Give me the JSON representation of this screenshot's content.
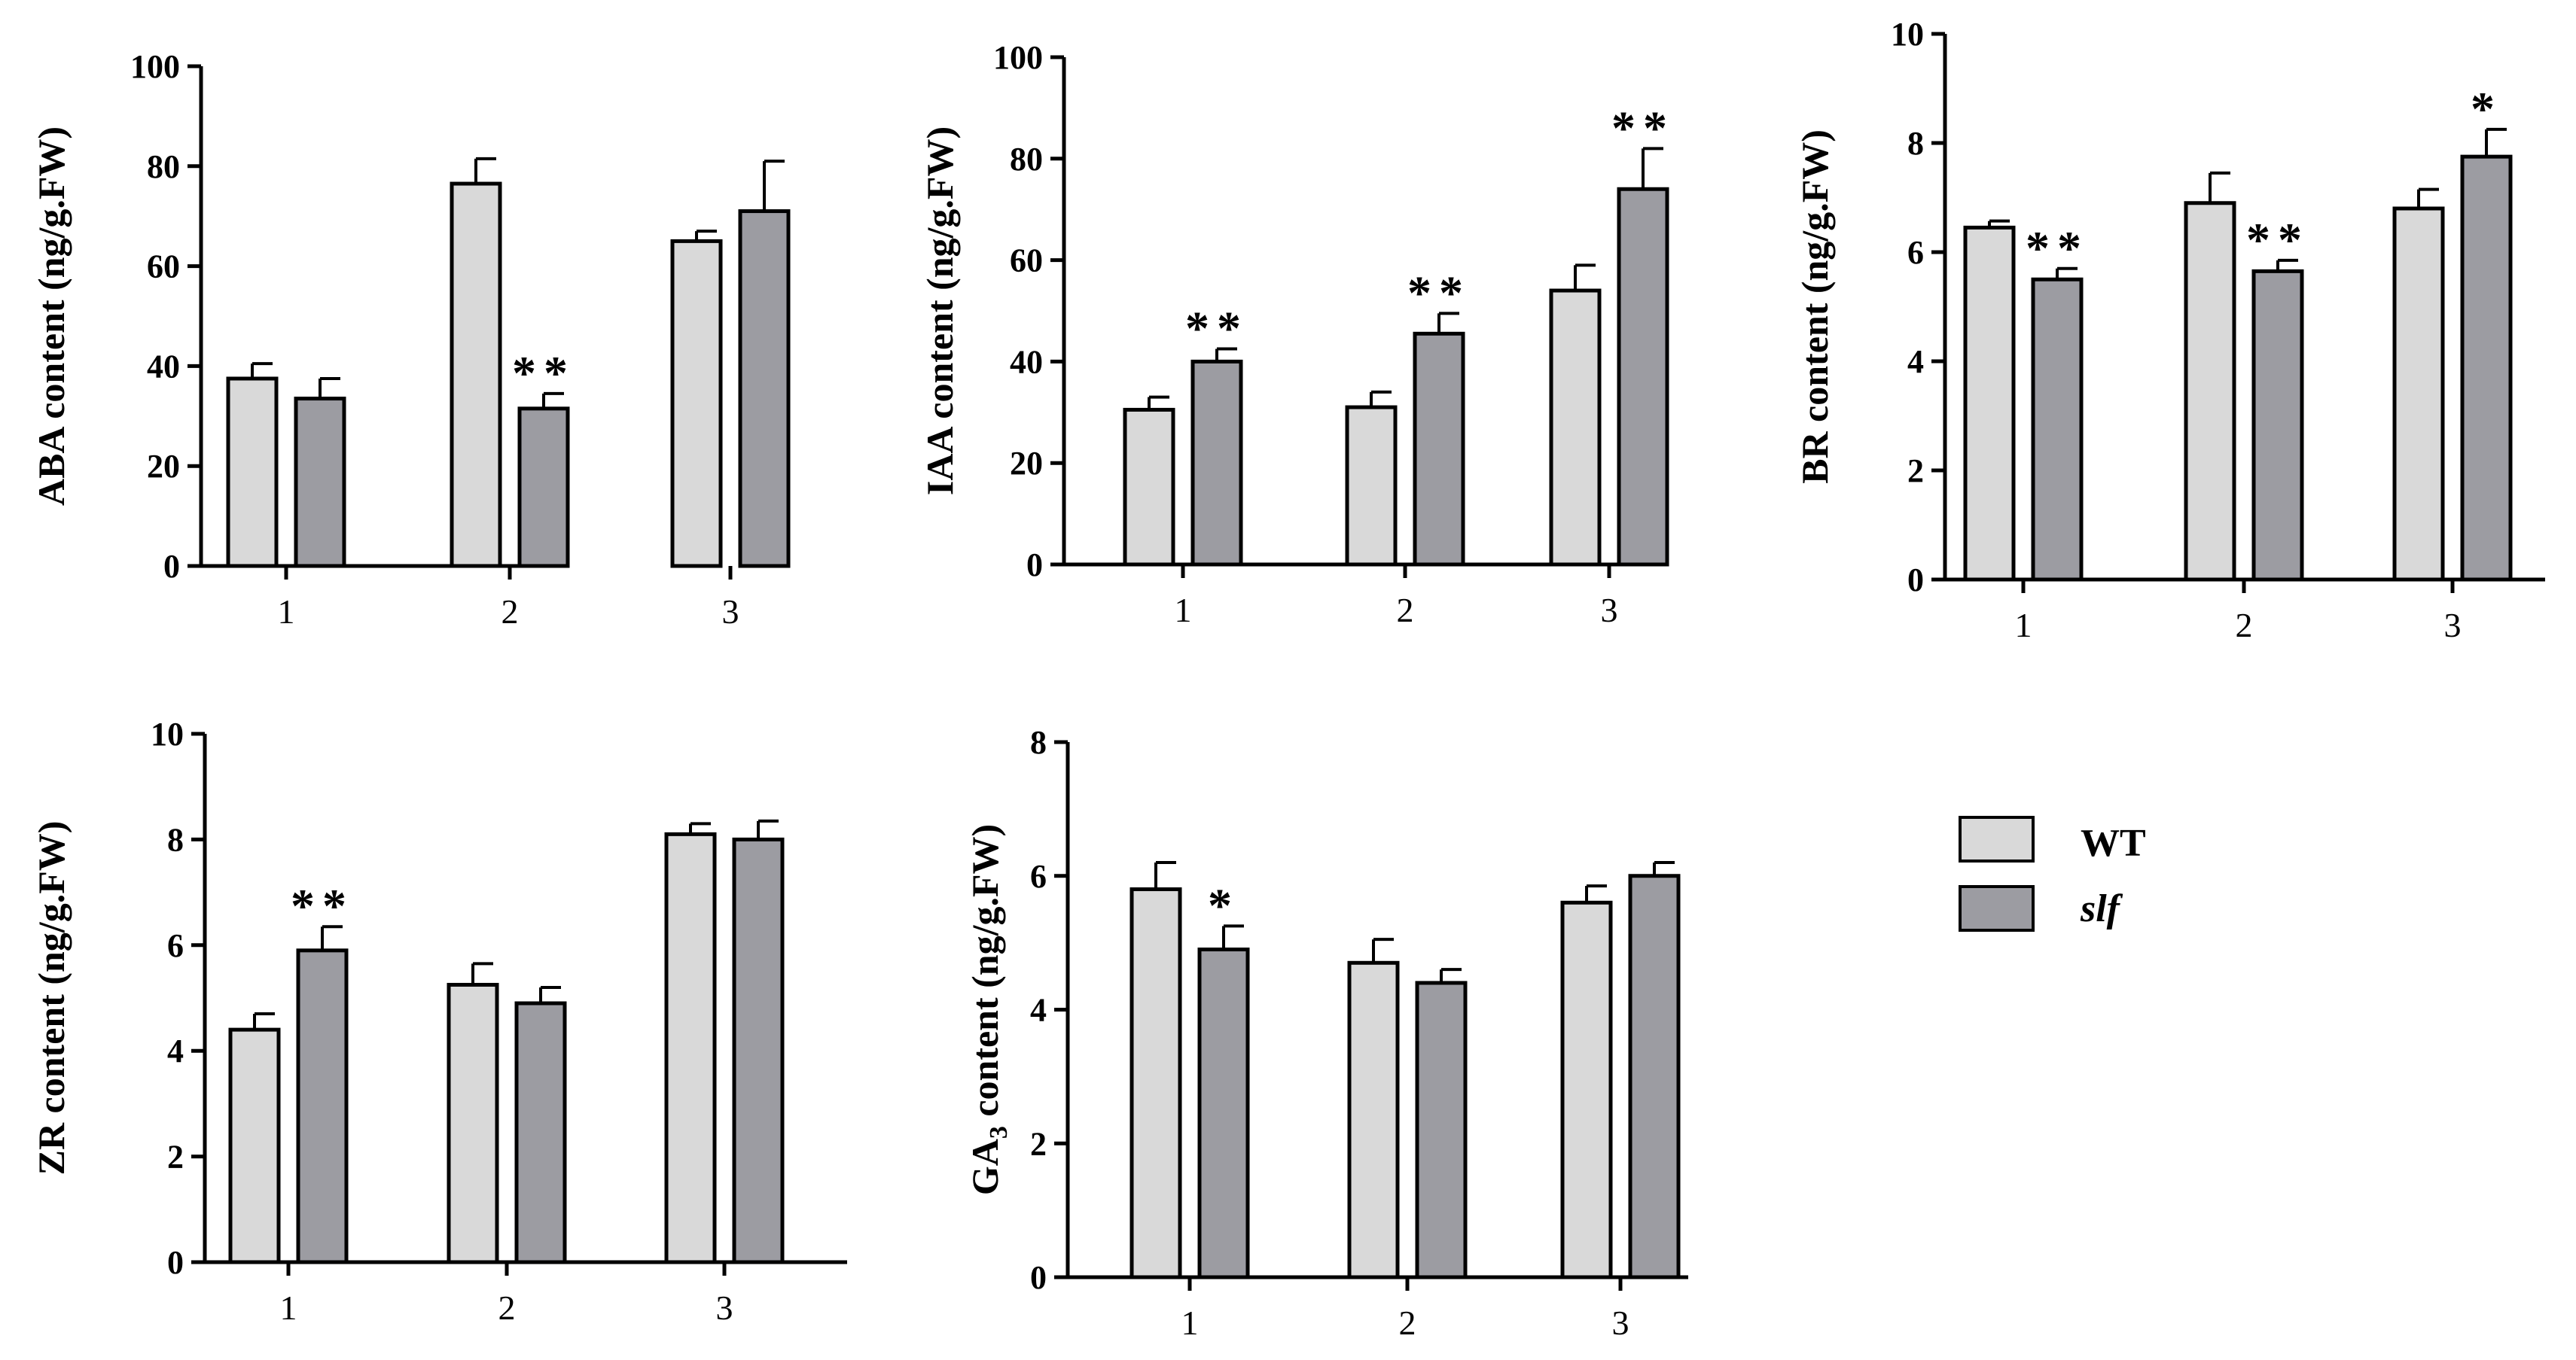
{
  "colors": {
    "wt": "#d9d9d9",
    "slf": "#9c9ca2",
    "axis": "#000000"
  },
  "legend": {
    "items": [
      {
        "label": "WT",
        "series": "wt",
        "italic": false
      },
      {
        "label": "slf",
        "series": "slf",
        "italic": true
      }
    ]
  },
  "chart_data": [
    {
      "id": "aba",
      "type": "bar",
      "ylabel": "ABA content (ng/g.FW)",
      "categories": [
        "1",
        "2",
        "3"
      ],
      "ylim": [
        0,
        100
      ],
      "yticks": [
        "0",
        "20",
        "40",
        "60",
        "80",
        "100"
      ],
      "series": [
        {
          "name": "WT",
          "values": [
            37.5,
            76.5,
            65
          ],
          "errors": [
            3,
            5,
            2
          ]
        },
        {
          "name": "slf",
          "values": [
            33.5,
            31.5,
            71
          ],
          "errors": [
            4,
            3,
            10
          ]
        }
      ],
      "annotations": [
        {
          "category": 1,
          "series": 1,
          "text": "**"
        }
      ]
    },
    {
      "id": "iaa",
      "type": "bar",
      "ylabel": "IAA content (ng/g.FW)",
      "categories": [
        "1",
        "2",
        "3"
      ],
      "ylim": [
        0,
        100
      ],
      "yticks": [
        "0",
        "20",
        "40",
        "60",
        "80",
        "100"
      ],
      "series": [
        {
          "name": "WT",
          "values": [
            30.5,
            31,
            54
          ],
          "errors": [
            2.5,
            3,
            5
          ]
        },
        {
          "name": "slf",
          "values": [
            40,
            45.5,
            74
          ],
          "errors": [
            2.5,
            4,
            8
          ]
        }
      ],
      "annotations": [
        {
          "category": 0,
          "series": 1,
          "text": "**"
        },
        {
          "category": 1,
          "series": 1,
          "text": "**"
        },
        {
          "category": 2,
          "series": 1,
          "text": "**"
        }
      ]
    },
    {
      "id": "br",
      "type": "bar",
      "ylabel": "BR content (ng/g.FW)",
      "categories": [
        "1",
        "2",
        "3"
      ],
      "ylim": [
        0,
        10
      ],
      "yticks": [
        "0",
        "2",
        "4",
        "6",
        "8",
        "10"
      ],
      "series": [
        {
          "name": "WT",
          "values": [
            6.45,
            6.9,
            6.8
          ],
          "errors": [
            0.12,
            0.55,
            0.35
          ]
        },
        {
          "name": "slf",
          "values": [
            5.5,
            5.65,
            7.75
          ],
          "errors": [
            0.2,
            0.2,
            0.5
          ]
        }
      ],
      "annotations": [
        {
          "category": 0,
          "series": 1,
          "text": "**"
        },
        {
          "category": 1,
          "series": 1,
          "text": "**"
        },
        {
          "category": 2,
          "series": 1,
          "text": "*"
        }
      ]
    },
    {
      "id": "zr",
      "type": "bar",
      "ylabel": "ZR content (ng/g.FW)",
      "categories": [
        "1",
        "2",
        "3"
      ],
      "ylim": [
        0,
        10
      ],
      "yticks": [
        "0",
        "2",
        "4",
        "6",
        "8",
        "10"
      ],
      "series": [
        {
          "name": "WT",
          "values": [
            4.4,
            5.25,
            8.1
          ],
          "errors": [
            0.3,
            0.4,
            0.2
          ]
        },
        {
          "name": "slf",
          "values": [
            5.9,
            4.9,
            8.0
          ],
          "errors": [
            0.45,
            0.3,
            0.35
          ]
        }
      ],
      "annotations": [
        {
          "category": 0,
          "series": 1,
          "text": "**"
        }
      ]
    },
    {
      "id": "ga3",
      "type": "bar",
      "ylabel": "GA3 content (ng/g.FW)",
      "ylabel_parts": {
        "pre": "GA",
        "sub": "3",
        "post": " content (ng/g.FW)"
      },
      "categories": [
        "1",
        "2",
        "3"
      ],
      "ylim": [
        0,
        8
      ],
      "yticks": [
        "0",
        "2",
        "4",
        "6",
        "8"
      ],
      "series": [
        {
          "name": "WT",
          "values": [
            5.8,
            4.7,
            5.6
          ],
          "errors": [
            0.4,
            0.35,
            0.25
          ]
        },
        {
          "name": "slf",
          "values": [
            4.9,
            4.4,
            6.0
          ],
          "errors": [
            0.35,
            0.2,
            0.2
          ]
        }
      ],
      "annotations": [
        {
          "category": 0,
          "series": 1,
          "text": "*"
        }
      ]
    }
  ]
}
